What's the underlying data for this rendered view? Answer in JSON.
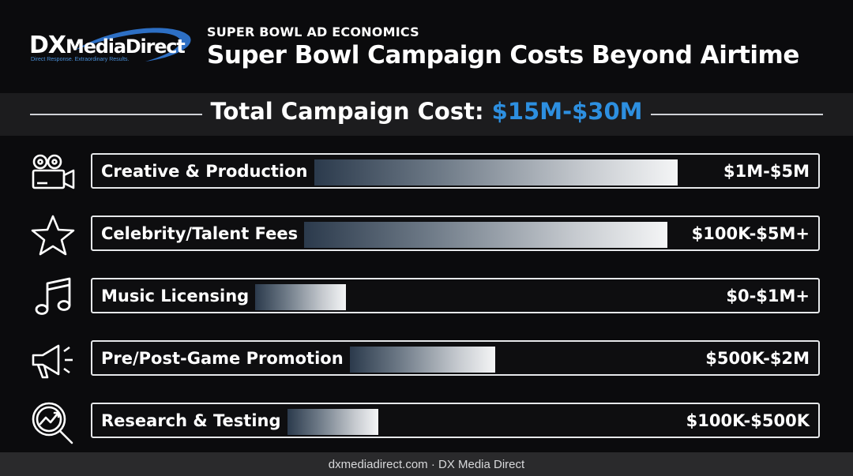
{
  "logo": {
    "dx": "DX",
    "media_direct": "MediaDirect",
    "tagline": "Direct Response. Extraordinary Results.",
    "accent": "#2d6fc4"
  },
  "header": {
    "eyebrow": "SUPER BOWL AD ECONOMICS",
    "title": "Super Bowl Campaign Costs Beyond Airtime"
  },
  "total": {
    "label": "Total Campaign Cost: ",
    "value": "$15M-$30M",
    "value_color": "#2d8fe0"
  },
  "chart_data": {
    "type": "bar",
    "orientation": "horizontal",
    "categories": [
      "Creative & Production",
      "Celebrity/Talent Fees",
      "Music Licensing",
      "Pre/Post-Game Promotion",
      "Research & Testing"
    ],
    "ranges": [
      {
        "low": 1000000,
        "high": 5000000,
        "label": "$1M-$5M",
        "icon": "video-camera-icon"
      },
      {
        "low": 100000,
        "high": 5000000,
        "label": "$100K-$5M+",
        "icon": "star-icon"
      },
      {
        "low": 0,
        "high": 1000000,
        "label": "$0-$1M+",
        "icon": "music-note-icon"
      },
      {
        "low": 500000,
        "high": 2000000,
        "label": "$500K-$2M",
        "icon": "megaphone-icon"
      },
      {
        "low": 100000,
        "high": 500000,
        "label": "$100K-$500K",
        "icon": "magnifier-chart-icon"
      }
    ],
    "bar_gradient": [
      "#2b3a4c",
      "#f4f5f6"
    ]
  },
  "footer": {
    "text": "dxmediadirect.com · DX Media Direct"
  }
}
